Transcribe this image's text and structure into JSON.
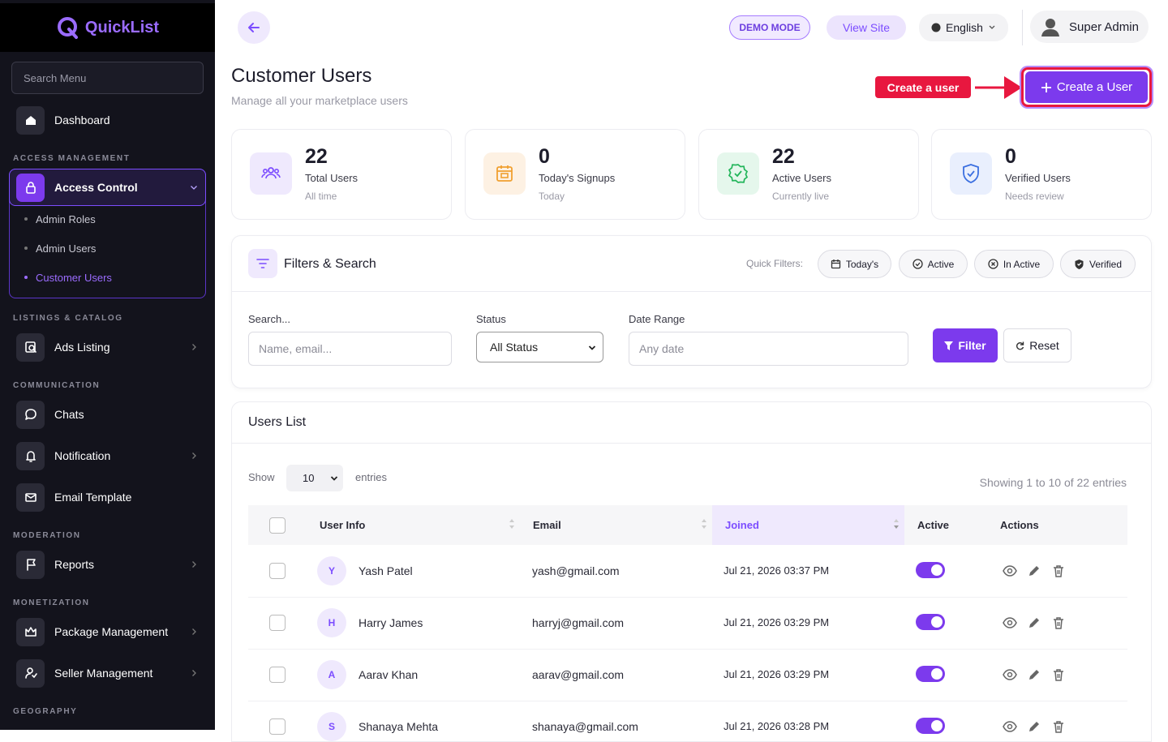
{
  "sidebar": {
    "brand": "QuickList",
    "search_placeholder": "Search Menu",
    "sections": [
      {
        "items": [
          {
            "label": "Dashboard"
          }
        ]
      },
      {
        "title": "ACCESS MANAGEMENT",
        "items": [
          {
            "label": "Access Control",
            "has_submenu": true,
            "children": [
              "Admin Roles",
              "Admin Users",
              "Customer Users"
            ]
          }
        ]
      },
      {
        "title": "LISTINGS & CATALOG",
        "items": [
          {
            "label": "Ads Listing",
            "has_submenu": true
          }
        ]
      },
      {
        "title": "COMMUNICATION",
        "items": [
          {
            "label": "Chats"
          },
          {
            "label": "Notification",
            "has_submenu": true
          },
          {
            "label": "Email Template"
          }
        ]
      },
      {
        "title": "MODERATION",
        "items": [
          {
            "label": "Reports",
            "has_submenu": true
          }
        ]
      },
      {
        "title": "MONETIZATION",
        "items": [
          {
            "label": "Package Management",
            "has_submenu": true
          },
          {
            "label": "Seller Management",
            "has_submenu": true
          }
        ]
      },
      {
        "title": "GEOGRAPHY",
        "items": []
      }
    ]
  },
  "topbar": {
    "demo_badge": "DEMO MODE",
    "view_site": "View Site",
    "language": "English",
    "user": "Super Admin"
  },
  "page": {
    "title": "Customer Users",
    "subtitle": "Manage all your marketplace users",
    "annotation": "Create a user",
    "create_button": "Create a User"
  },
  "stats": [
    {
      "value": 22,
      "label": "Total Users",
      "note": "All time"
    },
    {
      "value": 0,
      "label": "Today's Signups",
      "note": "Today"
    },
    {
      "value": 22,
      "label": "Active Users",
      "note": "Currently live"
    },
    {
      "value": 0,
      "label": "Verified Users",
      "note": "Needs review"
    }
  ],
  "filters": {
    "title": "Filters & Search",
    "quick_label": "Quick Filters:",
    "quick": [
      "Today's",
      "Active",
      "In Active",
      "Verified"
    ],
    "search_label": "Search...",
    "search_placeholder": "Name, email...",
    "status_label": "Status",
    "status_value": "All Status",
    "date_label": "Date Range",
    "date_placeholder": "Any date",
    "filter_button": "Filter",
    "reset_button": "Reset"
  },
  "users_list": {
    "title": "Users List",
    "show_label": "Show",
    "page_size": 10,
    "entries_label": "entries",
    "summary": "Showing 1 to 10 of 22 entries",
    "columns": [
      "User Info",
      "Email",
      "Joined",
      "Active",
      "Actions"
    ],
    "sorted_column": 2,
    "rows": [
      {
        "initial": "Y",
        "name": "Yash Patel",
        "email": "yash@gmail.com",
        "joined": "Jul 21, 2026 03:37 PM",
        "active": true
      },
      {
        "initial": "H",
        "name": "Harry James",
        "email": "harryj@gmail.com",
        "joined": "Jul 21, 2026 03:29 PM",
        "active": true
      },
      {
        "initial": "A",
        "name": "Aarav Khan",
        "email": "aarav@gmail.com",
        "joined": "Jul 21, 2026 03:29 PM",
        "active": true
      },
      {
        "initial": "S",
        "name": "Shanaya Mehta",
        "email": "shanaya@gmail.com",
        "joined": "Jul 21, 2026 03:28 PM",
        "active": true
      }
    ]
  }
}
